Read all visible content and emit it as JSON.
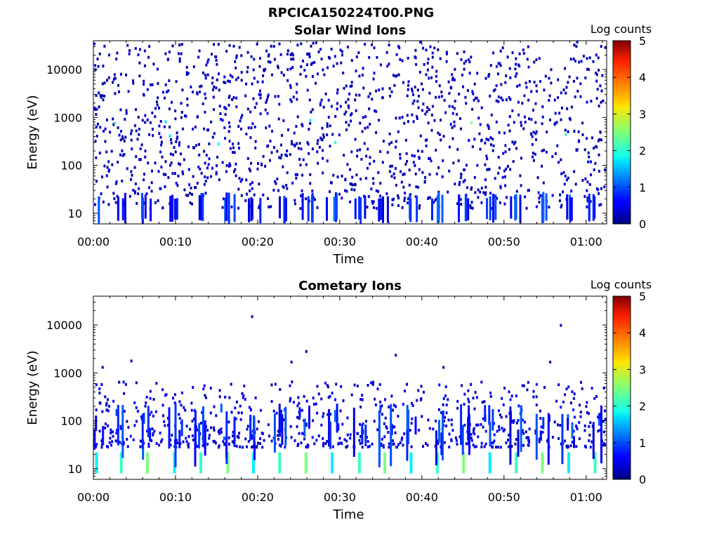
{
  "figure_title": "RPCICA150224T00.PNG",
  "chart_data": [
    {
      "type": "heatmap",
      "title": "Solar Wind Ions",
      "xlabel": "Time",
      "ylabel": "Energy (eV)",
      "y_scale": "log",
      "ylim": [
        6,
        40000
      ],
      "xlim_minutes": [
        0,
        62.5
      ],
      "x_ticks": [
        "00:00",
        "00:10",
        "00:20",
        "00:30",
        "00:40",
        "00:50",
        "01:00"
      ],
      "y_ticks": [
        "10",
        "100",
        "1000",
        "10000"
      ],
      "colorbar": {
        "label": "Log counts",
        "min": 0,
        "max": 5,
        "ticks": [
          "0",
          "1",
          "2",
          "3",
          "4",
          "5"
        ],
        "colormap": "jet"
      },
      "note_pattern": "sparse single counts spread across 6 eV - 40 keV; recurring vertical streaks below 30 eV",
      "streak_times_min": [
        0.3,
        3.3,
        6.5,
        9.8,
        13.0,
        16.3,
        19.4,
        22.6,
        25.8,
        29.0,
        32.3,
        35.4,
        38.6,
        41.8,
        45.0,
        48.2,
        51.4,
        54.6,
        57.8,
        61.0
      ]
    },
    {
      "type": "heatmap",
      "title": "Cometary Ions",
      "xlabel": "Time",
      "ylabel": "Energy (eV)",
      "y_scale": "log",
      "ylim": [
        6,
        40000
      ],
      "xlim_minutes": [
        0,
        62.5
      ],
      "x_ticks": [
        "00:00",
        "00:10",
        "00:20",
        "00:30",
        "00:40",
        "00:50",
        "01:00"
      ],
      "y_ticks": [
        "10",
        "100",
        "1000",
        "10000"
      ],
      "colorbar": {
        "label": "Log counts",
        "min": 0,
        "max": 5,
        "ticks": [
          "0",
          "1",
          "2",
          "3",
          "4",
          "5"
        ],
        "colormap": "jet"
      },
      "note_pattern": "counts concentrated below ~500 eV; periodic bright streaks below 25 eV reaching log counts ~2.5",
      "streak_times_min": [
        0.3,
        3.3,
        6.5,
        9.8,
        13.0,
        16.3,
        19.4,
        22.6,
        25.8,
        29.0,
        32.3,
        35.4,
        38.6,
        41.8,
        45.0,
        48.2,
        51.4,
        54.6,
        57.8,
        61.0
      ]
    }
  ]
}
